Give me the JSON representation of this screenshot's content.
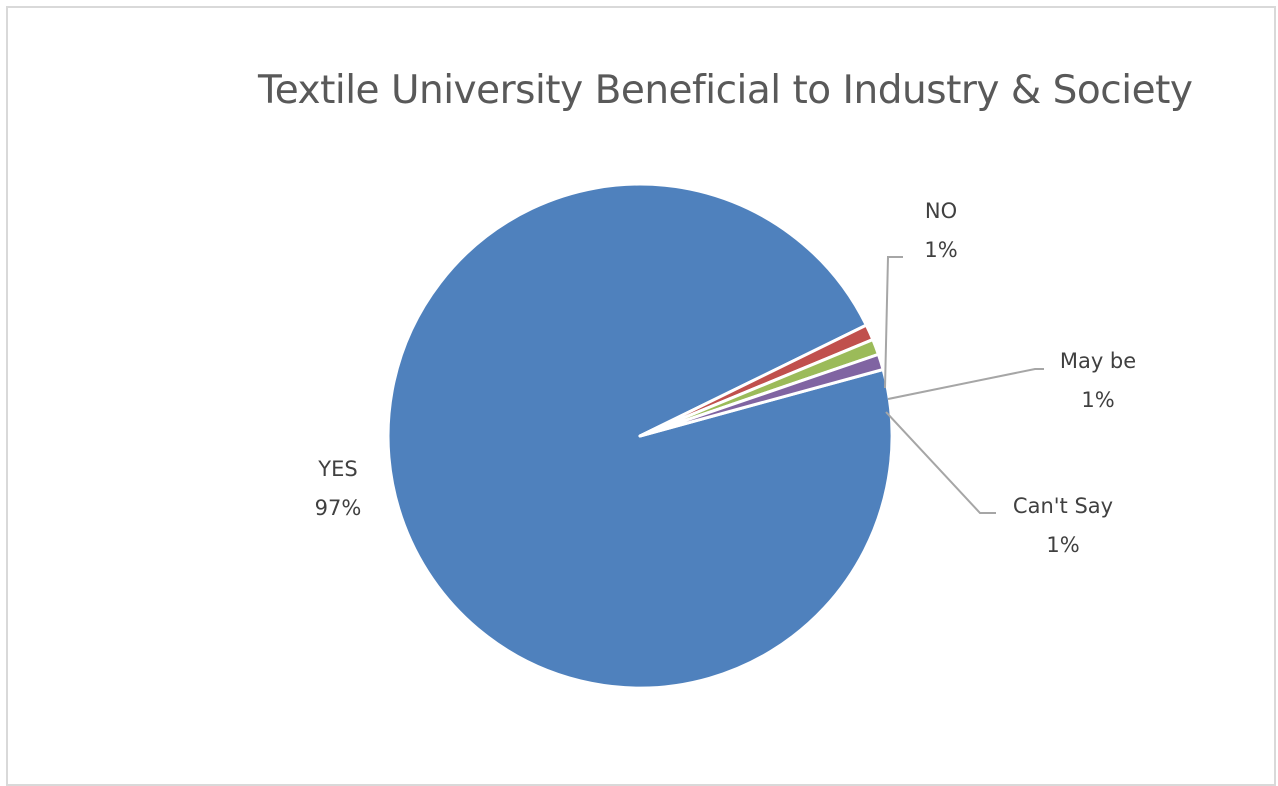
{
  "chart_data": {
    "type": "pie",
    "title": "Textile University Beneficial to Industry & Society",
    "slices": [
      {
        "label": "YES",
        "value": 97,
        "pct_label": "97%",
        "color": "#4f81bd"
      },
      {
        "label": "NO",
        "value": 1,
        "pct_label": "1%",
        "color": "#c0504d"
      },
      {
        "label": "May be",
        "value": 1,
        "pct_label": "1%",
        "color": "#9bbb59"
      },
      {
        "label": "Can't Say",
        "value": 1,
        "pct_label": "1%",
        "color": "#8064a2"
      }
    ]
  }
}
